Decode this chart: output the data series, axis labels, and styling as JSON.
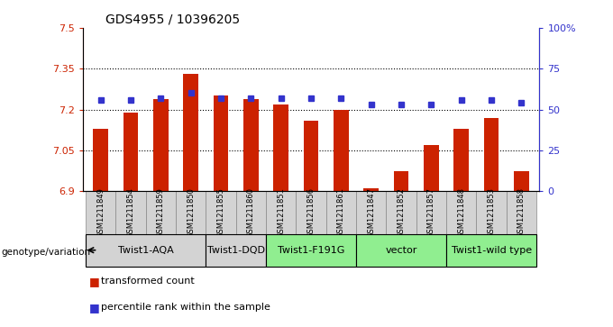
{
  "title": "GDS4955 / 10396205",
  "samples": [
    "GSM1211849",
    "GSM1211854",
    "GSM1211859",
    "GSM1211850",
    "GSM1211855",
    "GSM1211860",
    "GSM1211851",
    "GSM1211856",
    "GSM1211861",
    "GSM1211847",
    "GSM1211852",
    "GSM1211857",
    "GSM1211848",
    "GSM1211853",
    "GSM1211858"
  ],
  "bar_values": [
    7.13,
    7.19,
    7.24,
    7.33,
    7.25,
    7.24,
    7.22,
    7.16,
    7.2,
    6.91,
    6.975,
    7.07,
    7.13,
    7.17,
    6.975
  ],
  "percentile_values": [
    56,
    56,
    57,
    60,
    57,
    57,
    57,
    57,
    57,
    53,
    53,
    53,
    56,
    56,
    54
  ],
  "bar_color": "#cc2200",
  "percentile_color": "#3333cc",
  "ylim_left": [
    6.9,
    7.5
  ],
  "ylim_right": [
    0,
    100
  ],
  "yticks_left": [
    6.9,
    7.05,
    7.2,
    7.35,
    7.5
  ],
  "yticks_right": [
    0,
    25,
    50,
    75,
    100
  ],
  "ytick_labels_left": [
    "6.9",
    "7.05",
    "7.2",
    "7.35",
    "7.5"
  ],
  "ytick_labels_right": [
    "0",
    "25",
    "50",
    "75",
    "100%"
  ],
  "groups": [
    {
      "label": "Twist1-AQA",
      "count": 4,
      "color": "#d3d3d3"
    },
    {
      "label": "Twist1-DQD",
      "count": 2,
      "color": "#d3d3d3"
    },
    {
      "label": "Twist1-F191G",
      "count": 3,
      "color": "#90ee90"
    },
    {
      "label": "vector",
      "count": 3,
      "color": "#90ee90"
    },
    {
      "label": "Twist1-wild type",
      "count": 3,
      "color": "#90ee90"
    }
  ],
  "legend_bar_label": "transformed count",
  "legend_pct_label": "percentile rank within the sample",
  "genotype_label": "genotype/variation",
  "base_value": 6.9,
  "dotted_lines": [
    7.05,
    7.2,
    7.35
  ],
  "bar_width": 0.5,
  "sample_box_color": "#d3d3d3",
  "sample_box_edge": "#888888"
}
